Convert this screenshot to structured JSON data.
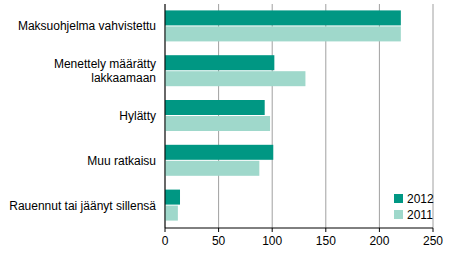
{
  "chart_data": {
    "type": "bar",
    "orientation": "horizontal",
    "categories": [
      "Maksuohjelma vahvistettu",
      "Menettely määrätty lakkaamaan",
      "Hylätty",
      "Muu ratkaisu",
      "Rauennut tai jäänyt sillensä"
    ],
    "series": [
      {
        "name": "2012",
        "color": "#009783",
        "values": [
          220,
          102,
          93,
          101,
          14
        ]
      },
      {
        "name": "2011",
        "color": "#9fd8cb",
        "values": [
          220,
          131,
          98,
          88,
          12
        ]
      }
    ],
    "xlim": [
      0,
      250
    ],
    "xticks": [
      0,
      50,
      100,
      150,
      200,
      250
    ],
    "grid": true,
    "legend": "lower right"
  }
}
